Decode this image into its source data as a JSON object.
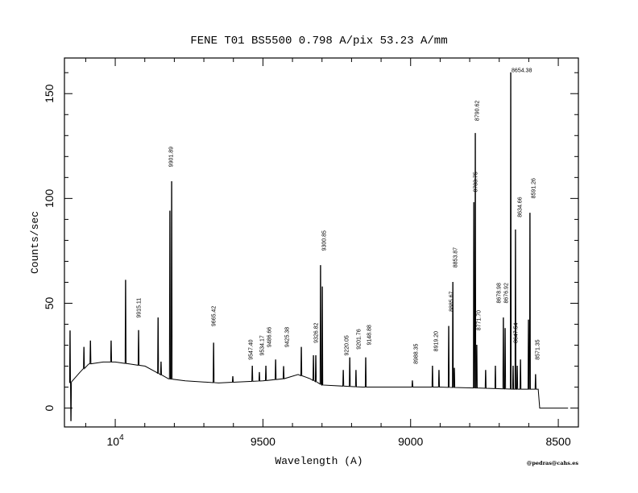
{
  "chart_data": {
    "type": "line",
    "title": "FENE  T01  BS5500  0.798 A/pix  53.23 A/mm",
    "xlabel": "Wavelength (A)",
    "ylabel": "Counts/sec",
    "credit": "@pedras@cahs.es",
    "xlim": [
      10172,
      8432
    ],
    "x_reversed": true,
    "ylim": [
      -9,
      167
    ],
    "x_ticks": [
      {
        "value": 10000,
        "label": "10",
        "sup": "4"
      },
      {
        "value": 9500,
        "label": "9500"
      },
      {
        "value": 9000,
        "label": "9000"
      },
      {
        "value": 8500,
        "label": "8500"
      }
    ],
    "y_ticks": [
      0,
      50,
      100,
      150
    ],
    "grid": false,
    "line_color": "#000000",
    "continuum": [
      [
        10153,
        12
      ],
      [
        10120,
        17
      ],
      [
        10090,
        21
      ],
      [
        10040,
        22
      ],
      [
        10000,
        22
      ],
      [
        9950,
        21
      ],
      [
        9899,
        20
      ],
      [
        9860,
        17
      ],
      [
        9820,
        14
      ],
      [
        9763,
        13
      ],
      [
        9650,
        12
      ],
      [
        9500,
        13
      ],
      [
        9430,
        14
      ],
      [
        9381,
        16
      ],
      [
        9340,
        14
      ],
      [
        9299,
        11
      ],
      [
        9163,
        10
      ],
      [
        9026,
        10
      ],
      [
        8900,
        10
      ],
      [
        8754,
        9.5
      ],
      [
        8650,
        9
      ],
      [
        8568,
        9
      ],
      [
        8563,
        0
      ],
      [
        8467,
        0
      ]
    ],
    "lines": [
      [
        10153,
        37
      ],
      [
        10150,
        -6
      ],
      [
        10106,
        29
      ],
      [
        10084,
        32
      ],
      [
        10014,
        32
      ],
      [
        9965,
        61
      ],
      [
        9921,
        37
      ],
      [
        9855,
        43
      ],
      [
        9845,
        22
      ],
      [
        9815,
        94
      ],
      [
        9809,
        108
      ],
      [
        9667,
        31
      ],
      [
        9602,
        15
      ],
      [
        9536,
        20
      ],
      [
        9512,
        17
      ],
      [
        9490,
        20
      ],
      [
        9457,
        23
      ],
      [
        9430,
        20
      ],
      [
        9370,
        29
      ],
      [
        9329,
        25
      ],
      [
        9321,
        25
      ],
      [
        9305,
        68
      ],
      [
        9299,
        58
      ],
      [
        9228,
        18
      ],
      [
        9206,
        24
      ],
      [
        9185,
        18
      ],
      [
        9152,
        24
      ],
      [
        8994,
        13
      ],
      [
        8926,
        20
      ],
      [
        8904,
        18
      ],
      [
        8871,
        39
      ],
      [
        8857,
        60
      ],
      [
        8852,
        19
      ],
      [
        8786,
        98
      ],
      [
        8781,
        131
      ],
      [
        8776,
        30
      ],
      [
        8746,
        18
      ],
      [
        8713,
        20
      ],
      [
        8686,
        43
      ],
      [
        8680,
        38
      ],
      [
        8661,
        160
      ],
      [
        8653,
        20
      ],
      [
        8645,
        85
      ],
      [
        8639,
        20
      ],
      [
        8628,
        23
      ],
      [
        8601,
        42
      ],
      [
        8596,
        93
      ],
      [
        8577,
        16
      ]
    ],
    "annotations": [
      {
        "text": "9915.11",
        "x": 9921,
        "y": 43
      },
      {
        "text": "9901.89",
        "x": 9812,
        "y": 115
      },
      {
        "text": "9665.42",
        "x": 9667,
        "y": 39
      },
      {
        "text": "9547.40",
        "x": 9542,
        "y": 23
      },
      {
        "text": "9534.17",
        "x": 9526,
        "y": 25
      },
      {
        "text": "9486.66",
        "x": 9479,
        "y": 29
      },
      {
        "text": "9425.38",
        "x": 9419,
        "y": 29
      },
      {
        "text": "9326.82",
        "x": 9321,
        "y": 31
      },
      {
        "text": "9300.85",
        "x": 9294,
        "y": 75
      },
      {
        "text": "9220.05",
        "x": 9217,
        "y": 25
      },
      {
        "text": "9201.76",
        "x": 9198,
        "y": 28
      },
      {
        "text": "9148.88",
        "x": 9141,
        "y": 30
      },
      {
        "text": "8988.35",
        "x": 8983,
        "y": 21
      },
      {
        "text": "8919.20",
        "x": 8915,
        "y": 27
      },
      {
        "text": "8885.67",
        "x": 8863,
        "y": 46
      },
      {
        "text": "8853.87",
        "x": 8849,
        "y": 67
      },
      {
        "text": "8790.62",
        "x": 8776,
        "y": 137
      },
      {
        "text": "8783.75",
        "x": 8781,
        "y": 103
      },
      {
        "text": "8771.70",
        "x": 8770,
        "y": 37
      },
      {
        "text": "8676.92",
        "x": 8677,
        "y": 50
      },
      {
        "text": "8678.98",
        "x": 8680,
        "y": 50
      },
      {
        "text": "8647.54",
        "x": 8645,
        "y": 31
      },
      {
        "text": "8634.66",
        "x": 8631,
        "y": 91
      },
      {
        "text": "8591.26",
        "x": 8585,
        "y": 100
      },
      {
        "text": "8571.35",
        "x": 8571,
        "y": 23
      },
      {
        "text": "8654.38",
        "x": 8661,
        "y": 161,
        "horizontal": true
      }
    ]
  }
}
